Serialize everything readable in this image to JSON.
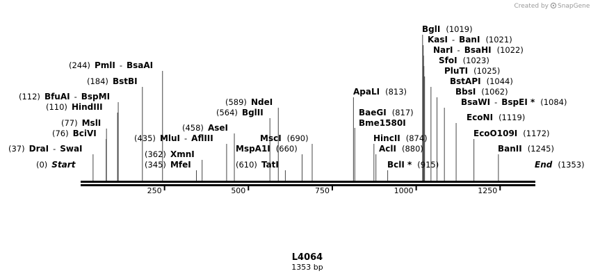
{
  "credit": {
    "text": "Created by",
    "brand": "SnapGene"
  },
  "plasmid": {
    "name": "L4064",
    "length_label": "1353 bp",
    "length": 1353
  },
  "colors": {
    "backbone": "#000000",
    "cutline": "#444444",
    "credit": "#999999"
  },
  "ticks": [
    {
      "pos": 250,
      "label": "250"
    },
    {
      "pos": 500,
      "label": "500"
    },
    {
      "pos": 750,
      "label": "750"
    },
    {
      "pos": 1000,
      "label": "1000"
    },
    {
      "pos": 1250,
      "label": "1250"
    }
  ],
  "sites": [
    {
      "id": "start",
      "pos": 0,
      "num": "(0)",
      "names": [
        "Start"
      ],
      "italic": true
    },
    {
      "id": "dra1",
      "pos": 37,
      "num": "(37)",
      "names": [
        "DraI",
        "-",
        "SwaI"
      ]
    },
    {
      "id": "bcivi",
      "pos": 76,
      "num": "(76)",
      "names": [
        "BciVI"
      ]
    },
    {
      "id": "msli",
      "pos": 77,
      "num": "(77)",
      "names": [
        "MslI"
      ]
    },
    {
      "id": "hindiii",
      "pos": 110,
      "num": "(110)",
      "names": [
        "HindIII"
      ]
    },
    {
      "id": "bfuai",
      "pos": 112,
      "num": "(112)",
      "names": [
        "BfuAI",
        "-",
        "BspMI"
      ]
    },
    {
      "id": "bstbi",
      "pos": 184,
      "num": "(184)",
      "names": [
        "BstBI"
      ]
    },
    {
      "id": "pmli",
      "pos": 244,
      "num": "(244)",
      "names": [
        "PmlI",
        "-",
        "BsaAI"
      ]
    },
    {
      "id": "mfei",
      "pos": 345,
      "num": "(345)",
      "names": [
        "MfeI"
      ]
    },
    {
      "id": "xmni",
      "pos": 362,
      "num": "(362)",
      "names": [
        "XmnI"
      ]
    },
    {
      "id": "mlui",
      "pos": 435,
      "num": "(435)",
      "names": [
        "MluI",
        "-",
        "AflIII"
      ]
    },
    {
      "id": "asei",
      "pos": 458,
      "num": "(458)",
      "names": [
        "AseI"
      ]
    },
    {
      "id": "bglii",
      "pos": 564,
      "num": "(564)",
      "names": [
        "BglII"
      ]
    },
    {
      "id": "ndei",
      "pos": 589,
      "num": "(589)",
      "names": [
        "NdeI"
      ]
    },
    {
      "id": "tati",
      "pos": 610,
      "num": "(610)",
      "names": [
        "TatI"
      ]
    },
    {
      "id": "mspa1i",
      "pos": 660,
      "num": "(660)",
      "names": [
        "MspA1I"
      ]
    },
    {
      "id": "msci",
      "pos": 690,
      "num": "(690)",
      "names": [
        "MscI"
      ]
    },
    {
      "id": "apali",
      "pos": 813,
      "num": "(813)",
      "names": [
        "ApaLI"
      ]
    },
    {
      "id": "baegi",
      "pos": 817,
      "num": "(817)",
      "names": [
        "BaeGI",
        "Bme1580I"
      ]
    },
    {
      "id": "hincii",
      "pos": 874,
      "num": "(874)",
      "names": [
        "HincII"
      ]
    },
    {
      "id": "acli",
      "pos": 880,
      "num": "(880)",
      "names": [
        "AclI"
      ]
    },
    {
      "id": "bcli",
      "pos": 915,
      "num": "(915)",
      "names": [
        "BclI *"
      ]
    },
    {
      "id": "bgli",
      "pos": 1019,
      "num": "(1019)",
      "names": [
        "BglI"
      ]
    },
    {
      "id": "kasi",
      "pos": 1021,
      "num": "(1021)",
      "names": [
        "KasI",
        "-",
        "BanI"
      ]
    },
    {
      "id": "nari",
      "pos": 1022,
      "num": "(1022)",
      "names": [
        "NarI",
        "-",
        "BsaHI"
      ]
    },
    {
      "id": "sfoi",
      "pos": 1023,
      "num": "(1023)",
      "names": [
        "SfoI"
      ]
    },
    {
      "id": "pluti",
      "pos": 1025,
      "num": "(1025)",
      "names": [
        "PluTI"
      ]
    },
    {
      "id": "bstapi",
      "pos": 1044,
      "num": "(1044)",
      "names": [
        "BstAPI"
      ]
    },
    {
      "id": "bbsi",
      "pos": 1062,
      "num": "(1062)",
      "names": [
        "BbsI"
      ]
    },
    {
      "id": "bsawi",
      "pos": 1084,
      "num": "(1084)",
      "names": [
        "BsaWI",
        "-",
        "BspEI *"
      ]
    },
    {
      "id": "econi",
      "pos": 1119,
      "num": "(1119)",
      "names": [
        "EcoNI"
      ]
    },
    {
      "id": "ecoo109i",
      "pos": 1172,
      "num": "(1172)",
      "names": [
        "EcoO109I"
      ]
    },
    {
      "id": "banii",
      "pos": 1245,
      "num": "(1245)",
      "names": [
        "BanII"
      ]
    },
    {
      "id": "end",
      "pos": 1353,
      "num": "(1353)",
      "names": [
        "End"
      ],
      "italic": true
    }
  ]
}
